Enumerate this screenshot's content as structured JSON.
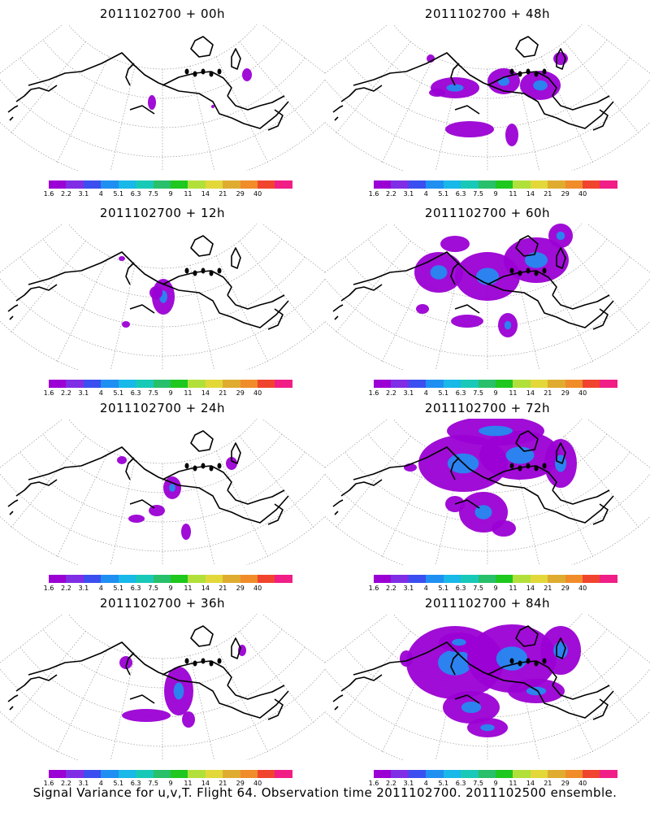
{
  "caption": "Signal Variance for u,v,T. Flight 64. Observation time 2011102700. 2011102500 ensemble.",
  "colorbar": {
    "labels": [
      "1.6",
      "2.2",
      "3.1",
      "4",
      "5.1",
      "6.3",
      "7.5",
      "9",
      "11",
      "14",
      "21",
      "29",
      "40"
    ],
    "colors": [
      "#9b00d4",
      "#7f2ee6",
      "#3b4ff0",
      "#1f8ff2",
      "#18b8e8",
      "#19c9b8",
      "#28c06a",
      "#1ec81e",
      "#b2e03a",
      "#e2d83a",
      "#e0ac30",
      "#f08c2a",
      "#f0442e",
      "#f01e86"
    ]
  },
  "panels": [
    {
      "title": "2011102700 + 00h",
      "blobs": [
        [
          187,
          126,
          5,
          9
        ],
        [
          304,
          92,
          6,
          8
        ],
        [
          262,
          131,
          2,
          2
        ]
      ]
    },
    {
      "title": "2011102700 + 48h",
      "blobs": [
        [
          578,
          159,
          30,
          10
        ],
        [
          630,
          166,
          8,
          14
        ],
        [
          560,
          108,
          30,
          13
        ],
        [
          620,
          100,
          20,
          16
        ],
        [
          665,
          105,
          25,
          18
        ],
        [
          690,
          72,
          9,
          8
        ],
        [
          530,
          72,
          5,
          5
        ],
        [
          538,
          114,
          10,
          5
        ]
      ]
    },
    {
      "title": "2011102700 + 12h",
      "blobs": [
        [
          201,
          365,
          14,
          22
        ],
        [
          192,
          360,
          8,
          8
        ],
        [
          150,
          318,
          4,
          3
        ],
        [
          155,
          399,
          5,
          4
        ]
      ]
    },
    {
      "title": "2011102700 + 60h",
      "blobs": [
        [
          540,
          335,
          30,
          25
        ],
        [
          600,
          340,
          40,
          30
        ],
        [
          660,
          320,
          40,
          28
        ],
        [
          690,
          290,
          15,
          15
        ],
        [
          575,
          395,
          20,
          8
        ],
        [
          625,
          400,
          12,
          15
        ],
        [
          560,
          300,
          18,
          10
        ],
        [
          520,
          380,
          8,
          6
        ]
      ]
    },
    {
      "title": "2011102700 + 24h",
      "blobs": [
        [
          212,
          600,
          11,
          14
        ],
        [
          150,
          566,
          6,
          5
        ],
        [
          285,
          570,
          7,
          8
        ],
        [
          168,
          638,
          10,
          5
        ],
        [
          193,
          628,
          10,
          7
        ],
        [
          229,
          654,
          6,
          10
        ]
      ]
    },
    {
      "title": "2011102700 + 72h",
      "blobs": [
        [
          570,
          570,
          55,
          35
        ],
        [
          640,
          560,
          50,
          30
        ],
        [
          610,
          530,
          60,
          18
        ],
        [
          690,
          570,
          20,
          30
        ],
        [
          560,
          620,
          12,
          10
        ],
        [
          595,
          630,
          30,
          25
        ],
        [
          620,
          650,
          15,
          10
        ],
        [
          505,
          575,
          8,
          5
        ]
      ]
    },
    {
      "title": "2011102700 + 36h",
      "blobs": [
        [
          180,
          880,
          30,
          8
        ],
        [
          220,
          850,
          18,
          30
        ],
        [
          155,
          815,
          8,
          8
        ],
        [
          232,
          885,
          8,
          10
        ],
        [
          298,
          800,
          5,
          7
        ]
      ]
    },
    {
      "title": "2011102700 + 84h",
      "blobs": [
        [
          560,
          815,
          60,
          45
        ],
        [
          630,
          810,
          55,
          42
        ],
        [
          690,
          800,
          25,
          30
        ],
        [
          580,
          870,
          35,
          20
        ],
        [
          600,
          895,
          25,
          12
        ],
        [
          660,
          850,
          35,
          15
        ],
        [
          565,
          790,
          25,
          12
        ],
        [
          500,
          810,
          8,
          10
        ]
      ]
    }
  ]
}
